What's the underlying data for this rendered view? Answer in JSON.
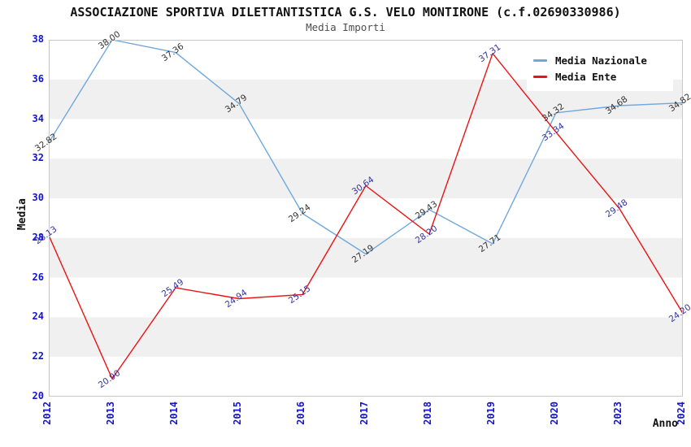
{
  "title": "ASSOCIAZIONE SPORTIVA DILETTANTISTICA G.S. VELO MONTIRONE (c.f.02690330986)",
  "subtitle": "Media Importi",
  "legend": {
    "items": [
      {
        "label": "Media Nazionale",
        "color": "#6fa8dc"
      },
      {
        "label": "Media Ente",
        "color": "#e81414"
      }
    ]
  },
  "axes": {
    "x_title": "Anno",
    "y_title": "Media",
    "tick_color": "#1414cd",
    "y_ticks": [
      "20",
      "22",
      "24",
      "26",
      "28",
      "30",
      "32",
      "34",
      "36",
      "38"
    ],
    "x_ticks": [
      "2012",
      "2013",
      "2014",
      "2015",
      "2016",
      "2017",
      "2018",
      "2019",
      "2020",
      "2023",
      "2024"
    ]
  },
  "chart_data": {
    "type": "line",
    "title": "Media Importi",
    "xlabel": "Anno",
    "ylabel": "Media",
    "ylim": [
      20,
      38
    ],
    "y_tick_step": 2,
    "grid": "horizontal-bands",
    "band_colors": [
      "#ffffff",
      "#f0f0f0"
    ],
    "border_color": "#c9c9c9",
    "legend_position": "top-right",
    "categories": [
      "2012",
      "2013",
      "2014",
      "2015",
      "2016",
      "2017",
      "2018",
      "2019",
      "2020",
      "2023",
      "2024"
    ],
    "series": [
      {
        "name": "Media Nazionale",
        "color": "#6fa8dc",
        "label_color": "#333333",
        "values": [
          32.82,
          38.0,
          37.36,
          34.79,
          29.24,
          27.19,
          29.43,
          27.71,
          34.32,
          34.68,
          34.82
        ],
        "labels": [
          "32.82",
          "38.00",
          "37.36",
          "34.79",
          "29.24",
          "27.19",
          "29.43",
          "27.71",
          "34.32",
          "34.68",
          "34.82"
        ]
      },
      {
        "name": "Media Ente",
        "color": "#e81414",
        "label_color": "#3333a0",
        "values": [
          28.13,
          20.9,
          25.49,
          24.94,
          25.15,
          30.64,
          28.2,
          37.31,
          33.34,
          29.48,
          24.2
        ],
        "labels": [
          "28.13",
          "20.90",
          "25.49",
          "24.94",
          "25.15",
          "30.64",
          "28.20",
          "37.31",
          "33.34",
          "29.48",
          "24.20"
        ]
      }
    ]
  }
}
